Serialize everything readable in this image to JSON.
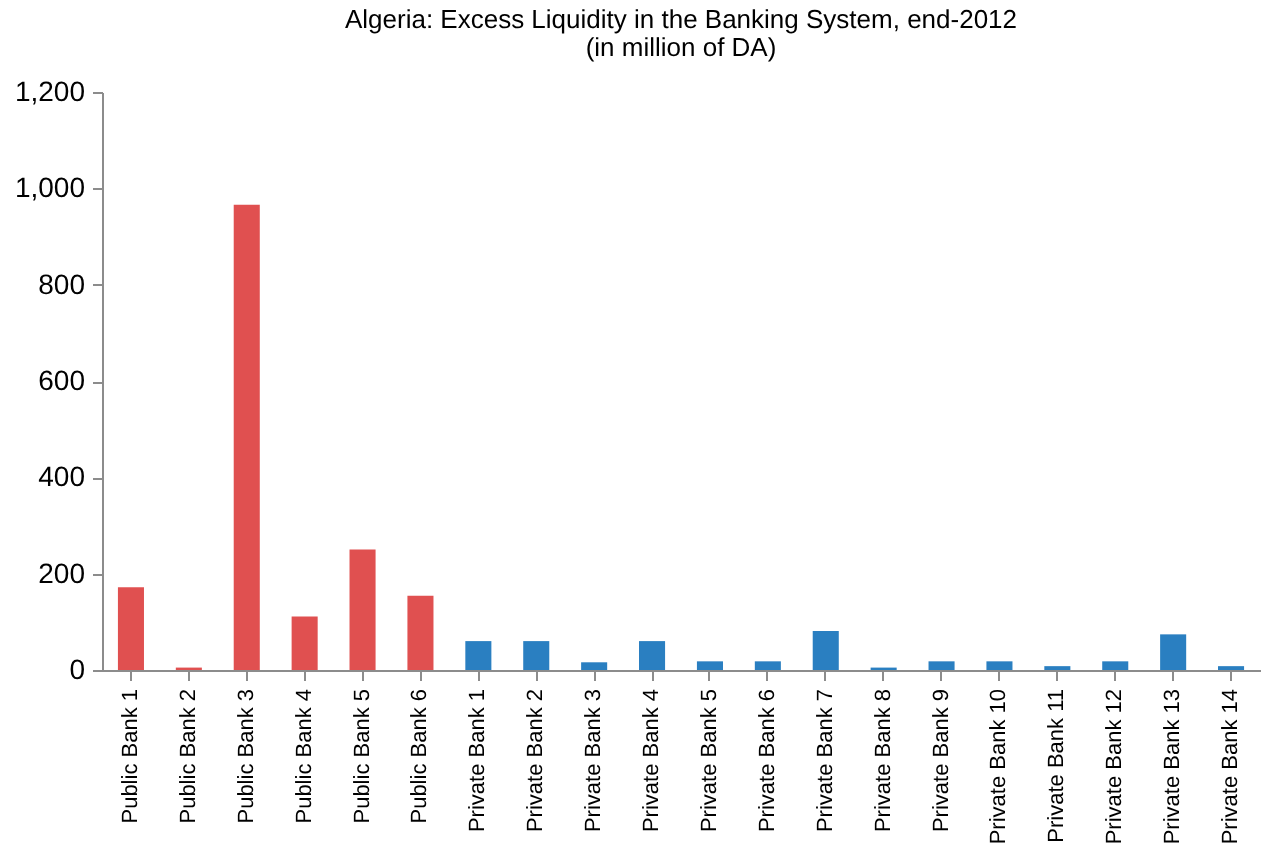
{
  "chart_data": {
    "type": "bar",
    "title": "Algeria: Excess Liquidity in the Banking System, end-2012",
    "subtitle": "(in million of DA)",
    "categories": [
      "Public Bank 1",
      "Public Bank 2",
      "Public Bank 3",
      "Public Bank 4",
      "Public Bank 5",
      "Public Bank 6",
      "Private Bank 1",
      "Private Bank 2",
      "Private Bank 3",
      "Private Bank 4",
      "Private Bank 5",
      "Private Bank 6",
      "Private Bank 7",
      "Private Bank 8",
      "Private Bank 9",
      "Private Bank 10",
      "Private Bank 11",
      "Private Bank 12",
      "Private Bank 13",
      "Private Bank 14"
    ],
    "values": [
      172,
      5,
      966,
      111,
      250,
      154,
      60,
      60,
      16,
      60,
      18,
      18,
      81,
      5,
      18,
      18,
      8,
      18,
      74,
      8
    ],
    "colors": [
      "#e05050",
      "#e05050",
      "#e05050",
      "#e05050",
      "#e05050",
      "#e05050",
      "#2a7fc1",
      "#2a7fc1",
      "#2a7fc1",
      "#2a7fc1",
      "#2a7fc1",
      "#2a7fc1",
      "#2a7fc1",
      "#2a7fc1",
      "#2a7fc1",
      "#2a7fc1",
      "#2a7fc1",
      "#2a7fc1",
      "#2a7fc1",
      "#2a7fc1"
    ],
    "ylim": [
      0,
      1200
    ],
    "yticks": [
      0,
      200,
      400,
      600,
      800,
      {
        "value": 1000,
        "label": "1,000"
      },
      {
        "value": 1200,
        "label": "1,200"
      }
    ]
  }
}
